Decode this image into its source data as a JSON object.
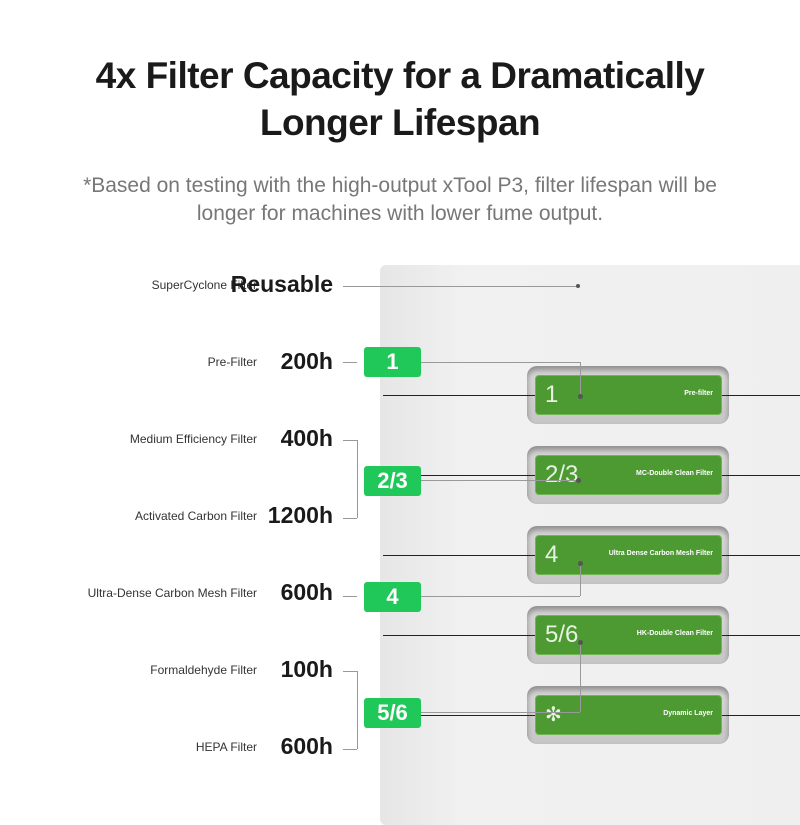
{
  "header": {
    "title_line1": "4x Filter Capacity for a Dramatically",
    "title_line2": "Longer Lifespan",
    "subtitle_line1": "*Based on testing with the high-output xTool P3, filter lifespan will be",
    "subtitle_line2": "longer for machines with lower fume output."
  },
  "lifespans": [
    {
      "label": "SuperCyclone Filter",
      "value": "Reusable"
    },
    {
      "label": "Pre-Filter",
      "value": "200h"
    },
    {
      "label": "Medium Efficiency Filter",
      "value": "400h"
    },
    {
      "label": "Activated Carbon Filter",
      "value": "1200h"
    },
    {
      "label": "Ultra-Dense Carbon Mesh Filter",
      "value": "600h"
    },
    {
      "label": "Formaldehyde Filter",
      "value": "100h"
    },
    {
      "label": "HEPA Filter",
      "value": "600h"
    }
  ],
  "badges": [
    "1",
    "2/3",
    "4",
    "5/6"
  ],
  "filters": [
    {
      "num": "1",
      "name": "Pre-filter"
    },
    {
      "num": "2/3",
      "name": "MC-Double Clean Filter"
    },
    {
      "num": "4",
      "name": "Ultra Dense Carbon Mesh Filter"
    },
    {
      "num": "5/6",
      "name": "HK-Double Clean Filter"
    },
    {
      "num": "",
      "name": "Dynamic Layer",
      "icon": "fan-icon"
    }
  ],
  "colors": {
    "badge": "#20c85a",
    "filter": "#4c9a31"
  }
}
